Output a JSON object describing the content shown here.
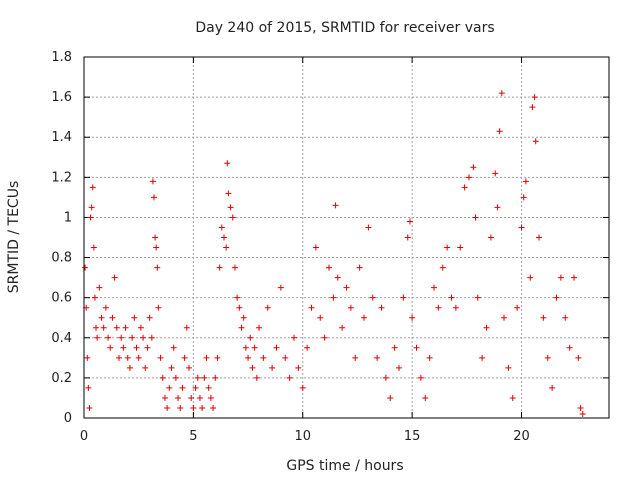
{
  "chart_data": {
    "type": "scatter",
    "title": "Day 240 of 2015, SRMTID for receiver vars",
    "xlabel": "GPS time / hours",
    "ylabel": "SRMTID / TECUs",
    "xlim": [
      0,
      24
    ],
    "ylim": [
      0,
      1.8
    ],
    "xticks": [
      0,
      5,
      10,
      15,
      20
    ],
    "yticks": [
      0,
      0.2,
      0.4,
      0.6,
      0.8,
      1,
      1.2,
      1.4,
      1.6,
      1.8
    ],
    "xtick_labels": [
      "0",
      "5",
      "10",
      "15",
      "20"
    ],
    "ytick_labels": [
      "0",
      "0.2",
      "0.4",
      "0.6",
      "0.8",
      "1",
      "1.2",
      "1.4",
      "1.6",
      "1.8"
    ],
    "grid": true,
    "marker": "+",
    "marker_color": "#e00000",
    "series": [
      {
        "name": "SRMTID",
        "points": [
          [
            0.05,
            0.75
          ],
          [
            0.1,
            0.55
          ],
          [
            0.15,
            0.3
          ],
          [
            0.2,
            0.15
          ],
          [
            0.25,
            0.05
          ],
          [
            0.3,
            1.0
          ],
          [
            0.35,
            1.05
          ],
          [
            0.4,
            1.15
          ],
          [
            0.45,
            0.85
          ],
          [
            0.5,
            0.6
          ],
          [
            0.55,
            0.45
          ],
          [
            0.6,
            0.4
          ],
          [
            0.7,
            0.65
          ],
          [
            0.8,
            0.5
          ],
          [
            0.9,
            0.45
          ],
          [
            1.0,
            0.55
          ],
          [
            1.1,
            0.4
          ],
          [
            1.2,
            0.35
          ],
          [
            1.3,
            0.5
          ],
          [
            1.4,
            0.7
          ],
          [
            1.5,
            0.45
          ],
          [
            1.6,
            0.3
          ],
          [
            1.7,
            0.4
          ],
          [
            1.8,
            0.35
          ],
          [
            1.9,
            0.45
          ],
          [
            2.0,
            0.3
          ],
          [
            2.1,
            0.25
          ],
          [
            2.2,
            0.4
          ],
          [
            2.3,
            0.5
          ],
          [
            2.4,
            0.35
          ],
          [
            2.5,
            0.3
          ],
          [
            2.6,
            0.45
          ],
          [
            2.7,
            0.4
          ],
          [
            2.8,
            0.25
          ],
          [
            2.9,
            0.35
          ],
          [
            3.0,
            0.5
          ],
          [
            3.1,
            0.4
          ],
          [
            3.15,
            1.18
          ],
          [
            3.2,
            1.1
          ],
          [
            3.25,
            0.9
          ],
          [
            3.3,
            0.85
          ],
          [
            3.35,
            0.75
          ],
          [
            3.4,
            0.55
          ],
          [
            3.5,
            0.3
          ],
          [
            3.6,
            0.2
          ],
          [
            3.7,
            0.1
          ],
          [
            3.8,
            0.05
          ],
          [
            3.9,
            0.15
          ],
          [
            4.0,
            0.25
          ],
          [
            4.1,
            0.35
          ],
          [
            4.2,
            0.2
          ],
          [
            4.3,
            0.1
          ],
          [
            4.4,
            0.05
          ],
          [
            4.5,
            0.15
          ],
          [
            4.6,
            0.3
          ],
          [
            4.7,
            0.45
          ],
          [
            4.8,
            0.25
          ],
          [
            4.9,
            0.1
          ],
          [
            5.0,
            0.05
          ],
          [
            5.1,
            0.15
          ],
          [
            5.2,
            0.2
          ],
          [
            5.3,
            0.1
          ],
          [
            5.4,
            0.05
          ],
          [
            5.5,
            0.2
          ],
          [
            5.6,
            0.3
          ],
          [
            5.7,
            0.15
          ],
          [
            5.8,
            0.1
          ],
          [
            5.9,
            0.05
          ],
          [
            6.0,
            0.2
          ],
          [
            6.1,
            0.3
          ],
          [
            6.2,
            0.75
          ],
          [
            6.3,
            0.95
          ],
          [
            6.4,
            0.9
          ],
          [
            6.5,
            0.85
          ],
          [
            6.55,
            1.27
          ],
          [
            6.6,
            1.12
          ],
          [
            6.7,
            1.05
          ],
          [
            6.8,
            1.0
          ],
          [
            6.9,
            0.75
          ],
          [
            7.0,
            0.6
          ],
          [
            7.1,
            0.55
          ],
          [
            7.2,
            0.45
          ],
          [
            7.3,
            0.5
          ],
          [
            7.4,
            0.35
          ],
          [
            7.5,
            0.3
          ],
          [
            7.6,
            0.4
          ],
          [
            7.7,
            0.25
          ],
          [
            7.8,
            0.35
          ],
          [
            7.9,
            0.2
          ],
          [
            8.0,
            0.45
          ],
          [
            8.2,
            0.3
          ],
          [
            8.4,
            0.55
          ],
          [
            8.6,
            0.25
          ],
          [
            8.8,
            0.35
          ],
          [
            9.0,
            0.65
          ],
          [
            9.2,
            0.3
          ],
          [
            9.4,
            0.2
          ],
          [
            9.6,
            0.4
          ],
          [
            9.8,
            0.25
          ],
          [
            10.0,
            0.15
          ],
          [
            10.2,
            0.35
          ],
          [
            10.4,
            0.55
          ],
          [
            10.6,
            0.85
          ],
          [
            10.8,
            0.5
          ],
          [
            11.0,
            0.4
          ],
          [
            11.2,
            0.75
          ],
          [
            11.4,
            0.6
          ],
          [
            11.5,
            1.06
          ],
          [
            11.6,
            0.7
          ],
          [
            11.8,
            0.45
          ],
          [
            12.0,
            0.65
          ],
          [
            12.2,
            0.55
          ],
          [
            12.4,
            0.3
          ],
          [
            12.6,
            0.75
          ],
          [
            12.8,
            0.5
          ],
          [
            13.0,
            0.95
          ],
          [
            13.2,
            0.6
          ],
          [
            13.4,
            0.3
          ],
          [
            13.6,
            0.55
          ],
          [
            13.8,
            0.2
          ],
          [
            14.0,
            0.1
          ],
          [
            14.2,
            0.35
          ],
          [
            14.4,
            0.25
          ],
          [
            14.6,
            0.6
          ],
          [
            14.8,
            0.9
          ],
          [
            14.9,
            0.98
          ],
          [
            15.0,
            0.5
          ],
          [
            15.2,
            0.35
          ],
          [
            15.4,
            0.2
          ],
          [
            15.6,
            0.1
          ],
          [
            15.8,
            0.3
          ],
          [
            16.0,
            0.65
          ],
          [
            16.2,
            0.55
          ],
          [
            16.4,
            0.75
          ],
          [
            16.6,
            0.85
          ],
          [
            16.8,
            0.6
          ],
          [
            17.0,
            0.55
          ],
          [
            17.2,
            0.85
          ],
          [
            17.4,
            1.15
          ],
          [
            17.6,
            1.2
          ],
          [
            17.8,
            1.25
          ],
          [
            17.9,
            1.0
          ],
          [
            18.0,
            0.6
          ],
          [
            18.2,
            0.3
          ],
          [
            18.4,
            0.45
          ],
          [
            18.6,
            0.9
          ],
          [
            18.8,
            1.22
          ],
          [
            18.9,
            1.05
          ],
          [
            19.0,
            1.43
          ],
          [
            19.1,
            1.62
          ],
          [
            19.2,
            0.5
          ],
          [
            19.4,
            0.25
          ],
          [
            19.6,
            0.1
          ],
          [
            19.8,
            0.55
          ],
          [
            20.0,
            0.95
          ],
          [
            20.1,
            1.1
          ],
          [
            20.2,
            1.18
          ],
          [
            20.4,
            0.7
          ],
          [
            20.5,
            1.55
          ],
          [
            20.6,
            1.6
          ],
          [
            20.65,
            1.38
          ],
          [
            20.8,
            0.9
          ],
          [
            21.0,
            0.5
          ],
          [
            21.2,
            0.3
          ],
          [
            21.4,
            0.15
          ],
          [
            21.6,
            0.6
          ],
          [
            21.8,
            0.7
          ],
          [
            22.0,
            0.5
          ],
          [
            22.2,
            0.35
          ],
          [
            22.4,
            0.7
          ],
          [
            22.6,
            0.3
          ],
          [
            22.7,
            0.05
          ],
          [
            22.8,
            0.02
          ]
        ]
      }
    ]
  }
}
